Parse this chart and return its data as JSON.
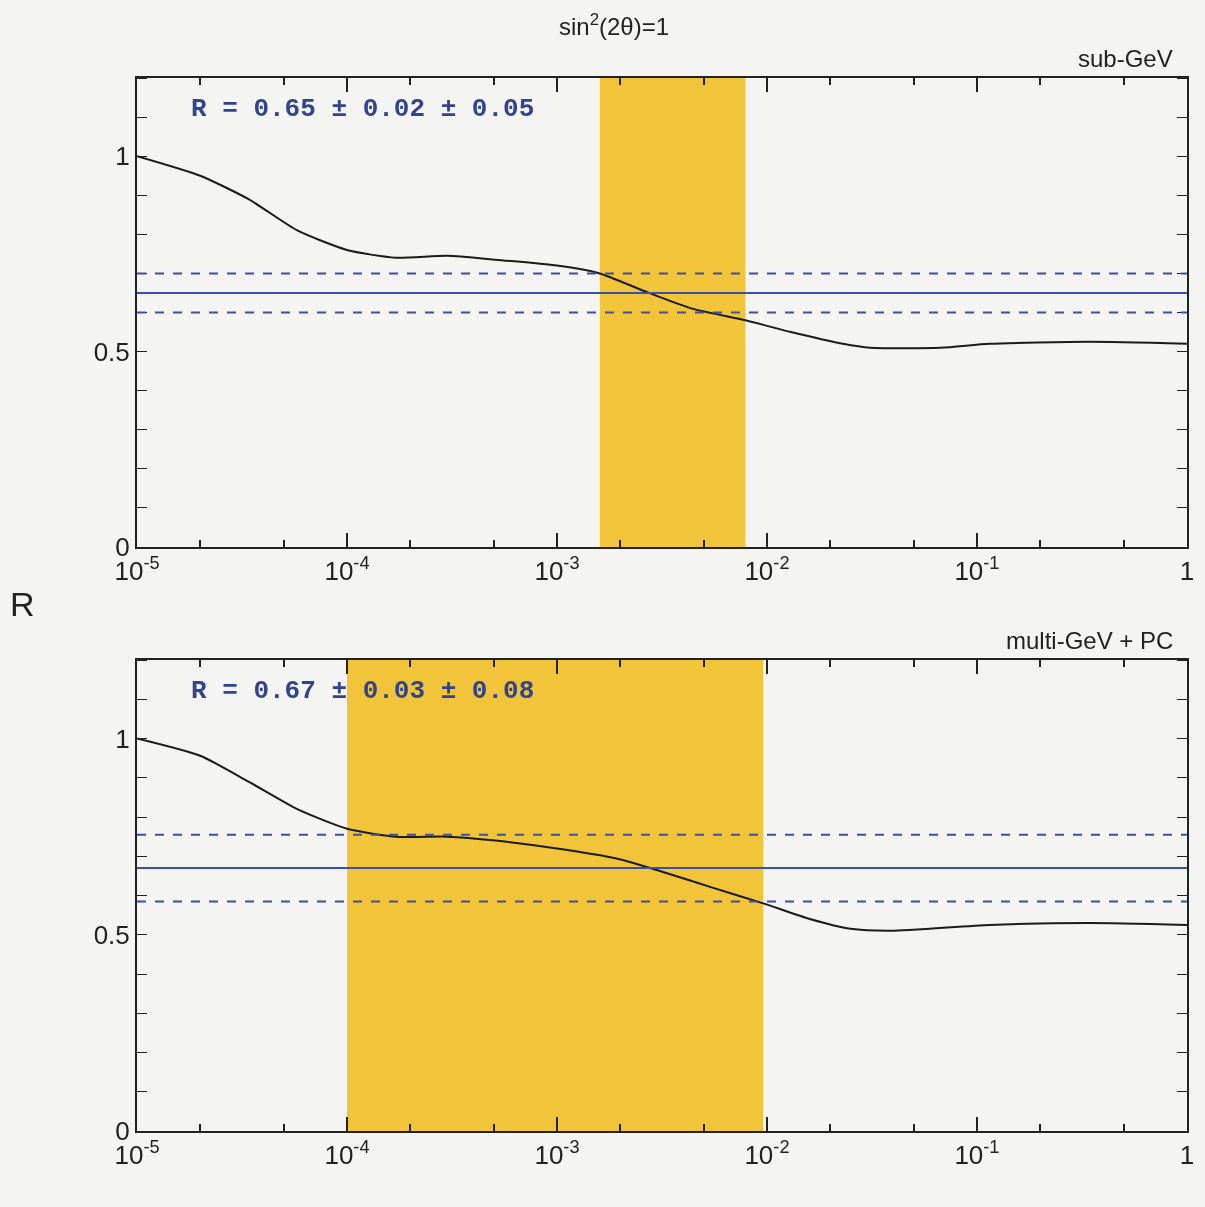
{
  "chart_data": [
    {
      "type": "line",
      "title": "sin$^{2}$(2θ)=1",
      "subtitle": "sub-GeV",
      "ylabel": "R",
      "x": [
        1e-05,
        2e-05,
        3.4e-05,
        5.8e-05,
        0.0001,
        0.00017,
        0.0003,
        0.00051,
        0.001,
        0.0016,
        0.0026,
        0.0044,
        0.0079,
        0.013,
        0.023,
        0.031,
        0.067,
        0.115,
        0.34,
        1
      ],
      "series": [
        {
          "color": "#1a1a1a",
          "values": [
            1.0,
            0.95,
            0.89,
            0.81,
            0.76,
            0.74,
            0.745,
            0.735,
            0.72,
            0.7,
            0.655,
            0.61,
            0.58,
            0.55,
            0.52,
            0.51,
            0.51,
            0.52,
            0.525,
            0.52
          ]
        }
      ],
      "log": "x",
      "xlim": [
        1e-05,
        1
      ],
      "xticks": [
        {
          "value": 1e-05,
          "label": "10$^{-5}$"
        },
        {
          "value": 0.0001,
          "label": "10$^{-4}$"
        },
        {
          "value": 0.001,
          "label": "10$^{-3}$"
        },
        {
          "value": 0.01,
          "label": "10$^{-2}$"
        },
        {
          "value": 0.1,
          "label": "10$^{-1}$"
        },
        1
      ],
      "ylim": [
        0,
        1.2
      ],
      "yticks": [
        0,
        0.5,
        1
      ],
      "grid": false,
      "line_style": "solid",
      "marker": "none",
      "ref_lines": [
        {
          "axis": "y",
          "value": 0.65,
          "color": "#3a4fa8",
          "line_style": "solid"
        },
        {
          "axis": "y",
          "value": 0.7,
          "color": "#3a4fa8",
          "line_style": "dashed"
        },
        {
          "axis": "y",
          "value": 0.6,
          "color": "#3a4fa8",
          "line_style": "dashed"
        }
      ],
      "bands": [
        {
          "axis": "x",
          "from": 0.0016,
          "to": 0.0079,
          "color": "#f2c43a"
        }
      ],
      "annotations": [
        "R = 0.65 ± 0.02 ± 0.05"
      ]
    },
    {
      "type": "line",
      "subtitle": "multi-GeV + PC",
      "x": [
        1e-05,
        2e-05,
        3.4e-05,
        5.8e-05,
        0.0001,
        0.00017,
        0.0003,
        0.00051,
        0.001,
        0.0019,
        0.0032,
        0.0055,
        0.0096,
        0.016,
        0.025,
        0.039,
        0.115,
        0.34,
        1
      ],
      "series": [
        {
          "color": "#1a1a1a",
          "values": [
            1.0,
            0.956,
            0.89,
            0.82,
            0.77,
            0.75,
            0.75,
            0.74,
            0.72,
            0.695,
            0.66,
            0.62,
            0.58,
            0.54,
            0.515,
            0.51,
            0.525,
            0.53,
            0.525
          ]
        }
      ],
      "log": "x",
      "xlim": [
        1e-05,
        1
      ],
      "xticks": [
        {
          "value": 1e-05,
          "label": "10$^{-5}$"
        },
        {
          "value": 0.0001,
          "label": "10$^{-4}$"
        },
        {
          "value": 0.001,
          "label": "10$^{-3}$"
        },
        {
          "value": 0.01,
          "label": "10$^{-2}$"
        },
        {
          "value": 0.1,
          "label": "10$^{-1}$"
        },
        1
      ],
      "ylim": [
        0,
        1.2
      ],
      "yticks": [
        0,
        0.5,
        1
      ],
      "grid": false,
      "line_style": "solid",
      "marker": "none",
      "ref_lines": [
        {
          "axis": "y",
          "value": 0.67,
          "color": "#3a4fa8",
          "line_style": "solid"
        },
        {
          "axis": "y",
          "value": 0.755,
          "color": "#3a4fa8",
          "line_style": "dashed"
        },
        {
          "axis": "y",
          "value": 0.585,
          "color": "#3a4fa8",
          "line_style": "dashed"
        }
      ],
      "bands": [
        {
          "axis": "x",
          "from": 0.0001,
          "to": 0.0096,
          "color": "#f2c43a"
        }
      ],
      "annotations": [
        "R = 0.67 ± 0.03 ± 0.08"
      ]
    }
  ]
}
